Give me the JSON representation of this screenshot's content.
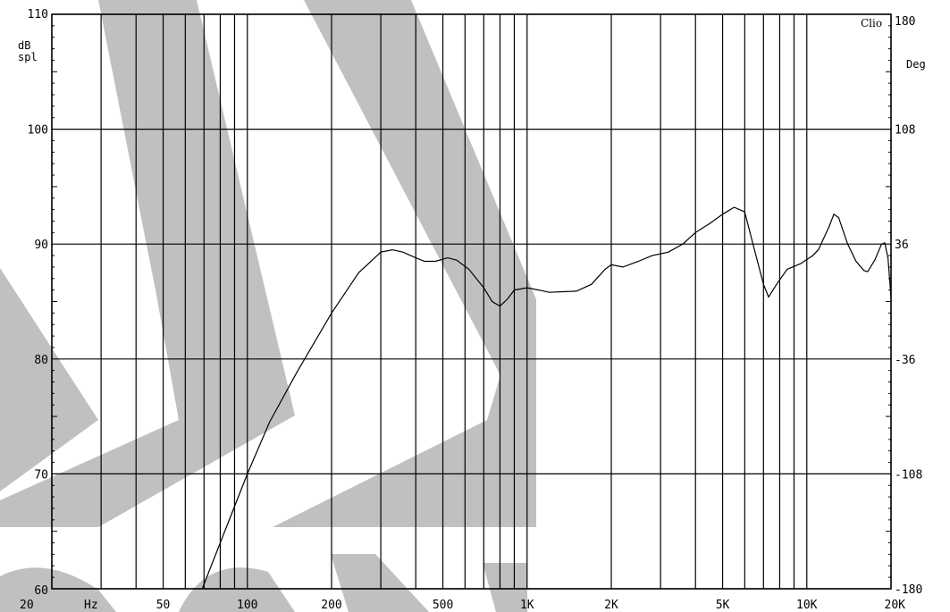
{
  "chart_data": {
    "type": "line",
    "title": "",
    "brand_label": "Clio",
    "xlabel": "",
    "x_unit_label": "Hz",
    "ylabel_left": [
      "dB",
      "spl"
    ],
    "ylabel_right": "Deg",
    "x_scale": "log",
    "xlim": [
      20,
      20000
    ],
    "ylim": [
      60,
      110
    ],
    "ylim_right": [
      -180,
      180
    ],
    "grid": true,
    "x_major_ticks": [
      {
        "value": 20,
        "label": "20"
      },
      {
        "value": 50,
        "label": "50"
      },
      {
        "value": 100,
        "label": "100"
      },
      {
        "value": 200,
        "label": "200"
      },
      {
        "value": 500,
        "label": "500"
      },
      {
        "value": 1000,
        "label": "1K"
      },
      {
        "value": 2000,
        "label": "2K"
      },
      {
        "value": 5000,
        "label": "5K"
      },
      {
        "value": 10000,
        "label": "10K"
      },
      {
        "value": 20000,
        "label": "20K"
      }
    ],
    "x_gridlines": [
      20,
      30,
      40,
      50,
      60,
      70,
      80,
      90,
      100,
      200,
      300,
      400,
      500,
      600,
      700,
      800,
      900,
      1000,
      2000,
      3000,
      4000,
      5000,
      6000,
      7000,
      8000,
      9000,
      10000,
      20000
    ],
    "y_ticks_left": [
      {
        "value": 60,
        "label": "60"
      },
      {
        "value": 70,
        "label": "70"
      },
      {
        "value": 80,
        "label": "80"
      },
      {
        "value": 90,
        "label": "90"
      },
      {
        "value": 100,
        "label": "100"
      },
      {
        "value": 110,
        "label": "110"
      }
    ],
    "y_ticks_right": [
      {
        "value": -180,
        "label": "-180"
      },
      {
        "value": -108,
        "label": "-108"
      },
      {
        "value": -36,
        "label": "-36"
      },
      {
        "value": 36,
        "label": "36"
      },
      {
        "value": 108,
        "label": "108"
      },
      {
        "value": 180,
        "label": "180"
      }
    ],
    "series": [
      {
        "color": "#000000",
        "points": [
          [
            69,
            60.0
          ],
          [
            80,
            64.0
          ],
          [
            100,
            70.0
          ],
          [
            120,
            74.5
          ],
          [
            150,
            78.8
          ],
          [
            200,
            84.0
          ],
          [
            250,
            87.5
          ],
          [
            300,
            89.3
          ],
          [
            330,
            89.5
          ],
          [
            360,
            89.3
          ],
          [
            400,
            88.8
          ],
          [
            430,
            88.5
          ],
          [
            470,
            88.5
          ],
          [
            520,
            88.8
          ],
          [
            560,
            88.6
          ],
          [
            620,
            87.8
          ],
          [
            700,
            86.2
          ],
          [
            750,
            85.0
          ],
          [
            800,
            84.6
          ],
          [
            850,
            85.2
          ],
          [
            900,
            86.0
          ],
          [
            1000,
            86.2
          ],
          [
            1100,
            86.0
          ],
          [
            1200,
            85.8
          ],
          [
            1500,
            85.9
          ],
          [
            1700,
            86.5
          ],
          [
            1900,
            87.8
          ],
          [
            2000,
            88.2
          ],
          [
            2200,
            88.0
          ],
          [
            2500,
            88.5
          ],
          [
            2800,
            89.0
          ],
          [
            3200,
            89.3
          ],
          [
            3600,
            90.0
          ],
          [
            4000,
            91.0
          ],
          [
            4500,
            91.8
          ],
          [
            5000,
            92.6
          ],
          [
            5500,
            93.2
          ],
          [
            6000,
            92.8
          ],
          [
            6500,
            89.5
          ],
          [
            7000,
            86.5
          ],
          [
            7300,
            85.4
          ],
          [
            7800,
            86.5
          ],
          [
            8500,
            87.8
          ],
          [
            9500,
            88.3
          ],
          [
            10500,
            89.0
          ],
          [
            11000,
            89.5
          ],
          [
            12000,
            91.5
          ],
          [
            12500,
            92.6
          ],
          [
            13000,
            92.3
          ],
          [
            14000,
            90.0
          ],
          [
            15000,
            88.5
          ],
          [
            16000,
            87.7
          ],
          [
            16500,
            87.6
          ],
          [
            17500,
            88.6
          ],
          [
            18500,
            90.0
          ],
          [
            19000,
            90.1
          ],
          [
            19500,
            88.8
          ],
          [
            20000,
            85.4
          ]
        ]
      }
    ]
  }
}
